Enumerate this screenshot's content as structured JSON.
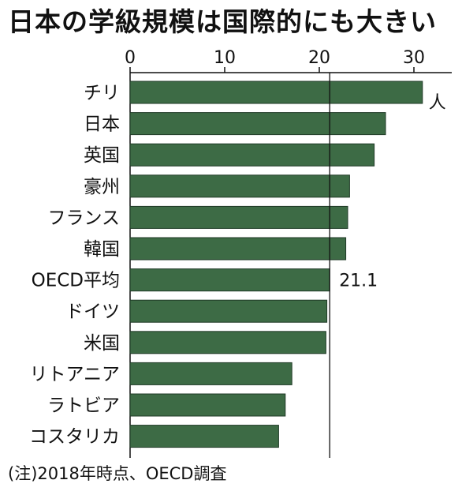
{
  "title": "日本の学級規模は国際的にも大きい",
  "note": "(注)2018年時点、OECD調査",
  "colors": {
    "bar": "#3d6b45",
    "bar_stroke": "#1f3a26",
    "axis": "#111111"
  },
  "chart_data": {
    "type": "bar",
    "orientation": "horizontal",
    "categories": [
      "チリ",
      "日本",
      "英国",
      "豪州",
      "フランス",
      "韓国",
      "OECD平均",
      "ドイツ",
      "米国",
      "リトアニア",
      "ラトビア",
      "コスタリカ"
    ],
    "values": [
      30.9,
      27.0,
      25.8,
      23.2,
      23.0,
      22.8,
      21.1,
      20.8,
      20.7,
      17.1,
      16.4,
      15.7
    ],
    "xticks": [
      0,
      10,
      20,
      30
    ],
    "xlim": [
      0,
      34
    ],
    "unit_label": "人",
    "reference": {
      "value": 21.1,
      "label": "21.1"
    },
    "xlabel": "",
    "ylabel": "",
    "grid": false
  }
}
